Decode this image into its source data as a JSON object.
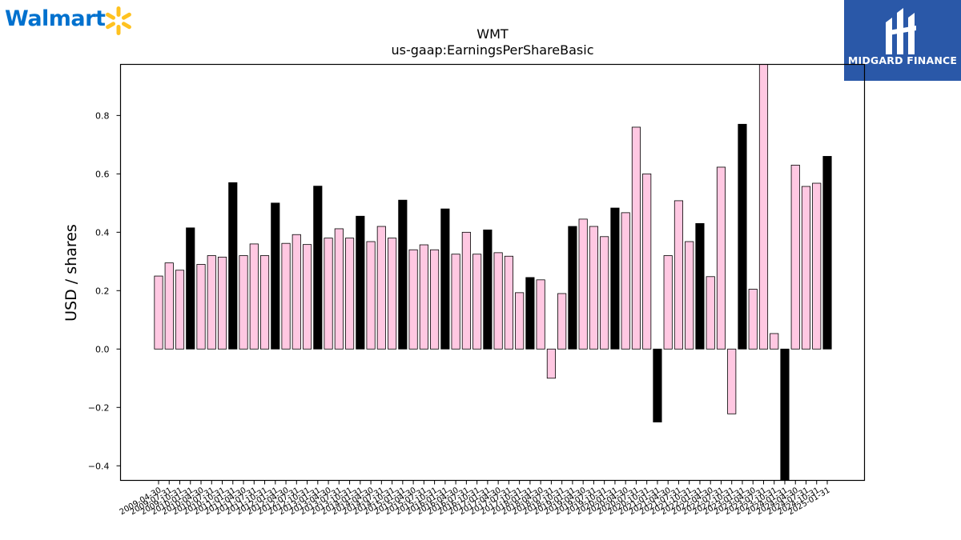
{
  "logo": {
    "text": "Walmart",
    "icon": "spark-icon",
    "color": "#0071ce",
    "spark_color": "#ffc220"
  },
  "brand": {
    "text": "MIDGARD FINANCE",
    "icon": "midgard-logo-icon",
    "bg_color": "#2a58a8"
  },
  "chart_data": {
    "type": "bar",
    "title": "WMT",
    "subtitle": "us-gaap:EarningsPerShareBasic",
    "ylabel": "USD / shares",
    "xlabel": "",
    "ylim": [
      -0.45,
      0.975
    ],
    "yticks": [
      -0.4,
      -0.2,
      0.0,
      0.2,
      0.4,
      0.6,
      0.8
    ],
    "grid": false,
    "legend": "none",
    "colors": {
      "quarterly": "#ffc8e2",
      "annual": "#000000",
      "edge": "#000000"
    },
    "categories": [
      "2009-04-30",
      "2009-07-31",
      "2009-10-31",
      "2010-01-31",
      "2010-04-30",
      "2010-07-31",
      "2010-10-31",
      "2011-01-31",
      "2011-04-30",
      "2011-07-31",
      "2011-10-31",
      "2012-01-31",
      "2012-04-30",
      "2012-07-31",
      "2012-10-31",
      "2013-01-31",
      "2013-04-30",
      "2013-07-31",
      "2013-10-31",
      "2014-01-31",
      "2014-04-30",
      "2014-07-31",
      "2014-10-31",
      "2015-01-31",
      "2015-04-30",
      "2015-07-31",
      "2015-10-31",
      "2016-01-31",
      "2016-04-30",
      "2016-07-31",
      "2016-10-31",
      "2017-01-31",
      "2017-04-30",
      "2017-07-31",
      "2017-10-31",
      "2018-01-31",
      "2018-04-30",
      "2018-07-31",
      "2018-10-31",
      "2019-01-31",
      "2019-04-30",
      "2019-07-31",
      "2019-10-31",
      "2020-01-31",
      "2020-04-30",
      "2020-07-31",
      "2020-10-31",
      "2021-01-31",
      "2021-04-30",
      "2021-07-31",
      "2021-10-31",
      "2022-01-31",
      "2022-04-30",
      "2022-07-31",
      "2022-10-31",
      "2023-01-31",
      "2023-04-30",
      "2023-07-31",
      "2023-10-31",
      "2024-01-31",
      "2024-04-30",
      "2024-07-31",
      "2024-10-31",
      "2025-01-31"
    ],
    "values": [
      0.25,
      0.295,
      0.27,
      0.415,
      0.29,
      0.32,
      0.315,
      0.57,
      0.32,
      0.36,
      0.32,
      0.5,
      0.362,
      0.392,
      0.358,
      0.558,
      0.38,
      0.412,
      0.38,
      0.455,
      0.368,
      0.42,
      0.38,
      0.51,
      0.34,
      0.357,
      0.34,
      0.48,
      0.325,
      0.4,
      0.325,
      0.408,
      0.33,
      0.318,
      0.193,
      0.245,
      0.237,
      -0.1,
      0.19,
      0.42,
      0.445,
      0.42,
      0.385,
      0.483,
      0.467,
      0.76,
      0.6,
      -0.25,
      0.32,
      0.508,
      0.368,
      0.43,
      0.248,
      0.623,
      -0.222,
      0.77,
      0.205,
      0.975,
      0.053,
      -0.45,
      0.63,
      0.557,
      0.568,
      0.66
    ],
    "annual": [
      false,
      false,
      false,
      true,
      false,
      false,
      false,
      true,
      false,
      false,
      false,
      true,
      false,
      false,
      false,
      true,
      false,
      false,
      false,
      true,
      false,
      false,
      false,
      true,
      false,
      false,
      false,
      true,
      false,
      false,
      false,
      true,
      false,
      false,
      false,
      true,
      false,
      false,
      false,
      true,
      false,
      false,
      false,
      true,
      false,
      false,
      false,
      true,
      false,
      false,
      false,
      true,
      false,
      false,
      false,
      true,
      false,
      false,
      false,
      true,
      false,
      false,
      false,
      true
    ]
  }
}
